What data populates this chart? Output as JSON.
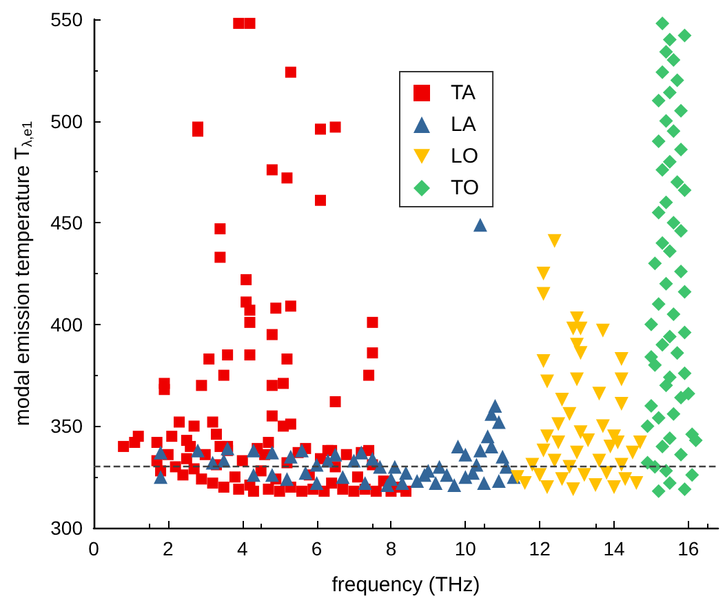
{
  "chart_data": {
    "type": "scatter",
    "xlabel": "frequency (THz)",
    "ylabel": "modal emission temperature T$_{λ,e1}$",
    "xlim": [
      0,
      16.8
    ],
    "xticks": [
      0,
      2,
      4,
      6,
      8,
      10,
      12,
      14,
      16
    ],
    "ylim": [
      300,
      550
    ],
    "yticks": [
      300,
      350,
      400,
      450,
      500,
      550
    ],
    "grid": false,
    "legend": "top",
    "ref_lines": [
      {
        "axis": "y",
        "value": 330,
        "color": "#404040",
        "line_style": "dashed"
      }
    ],
    "series": [
      {
        "name": "TA",
        "color": "#ee0000",
        "marker": "square",
        "x": [
          3.9,
          4.2,
          5.3,
          2.8,
          2.8,
          6.1,
          6.5,
          4.8,
          5.2,
          6.1,
          3.4,
          3.4,
          4.1,
          4.1,
          4.2,
          4.9,
          5.3,
          4.2,
          7.5,
          4.8,
          3.6,
          4.2,
          7.5,
          3.1,
          3.5,
          5.2,
          2.9,
          4.8,
          5.1,
          7.4,
          1.9,
          1.9,
          6.5,
          2.3,
          2.7,
          3.2,
          4.8,
          5.1,
          5.3,
          1.2,
          0.8,
          1.1,
          2.1,
          2.5,
          1.7,
          3.3,
          3.6,
          4.7,
          6.4,
          7.4,
          1.7,
          1.8,
          2.0,
          2.2,
          2.4,
          2.5,
          2.7,
          2.9,
          3.0,
          3.2,
          3.3,
          3.5,
          3.6,
          3.8,
          3.9,
          4.0,
          4.2,
          4.3,
          4.5,
          4.6,
          4.7,
          4.9,
          5.0,
          5.2,
          5.3,
          5.5,
          5.6,
          5.8,
          5.9,
          6.1,
          6.2,
          6.4,
          6.5,
          6.7,
          6.8,
          7.0,
          7.1,
          7.3,
          7.5,
          7.6,
          7.8,
          8.0,
          8.2,
          8.4,
          2.6,
          3.4,
          4.4,
          5.7,
          6.3,
          7.2
        ],
        "values": [
          548,
          548,
          524,
          497,
          495,
          496,
          497,
          476,
          472,
          461,
          447,
          433,
          422,
          411,
          407,
          408,
          409,
          401,
          401,
          395,
          385,
          385,
          386,
          383,
          375,
          383,
          370,
          370,
          371,
          375,
          371,
          368,
          362,
          352,
          350,
          352,
          355,
          350,
          351,
          345,
          340,
          342,
          345,
          343,
          342,
          346,
          340,
          342,
          338,
          338,
          333,
          328,
          336,
          330,
          326,
          334,
          329,
          324,
          336,
          322,
          331,
          320,
          338,
          325,
          319,
          333,
          321,
          318,
          328,
          336,
          319,
          324,
          318,
          332,
          320,
          337,
          318,
          326,
          319,
          334,
          318,
          322,
          330,
          319,
          336,
          318,
          325,
          319,
          331,
          318,
          323,
          318,
          320,
          318,
          340,
          340,
          339,
          339,
          338,
          337
        ]
      },
      {
        "name": "LA",
        "color": "#336699",
        "marker": "triangle",
        "x": [
          1.8,
          1.8,
          2.8,
          3.2,
          3.6,
          3.5,
          4.3,
          4.3,
          4.8,
          4.8,
          5.3,
          5.6,
          5.7,
          6.0,
          6.3,
          6.5,
          6.7,
          7.0,
          7.2,
          7.3,
          7.5,
          7.7,
          8.0,
          8.1,
          8.4,
          8.7,
          9.0,
          9.2,
          9.5,
          9.7,
          9.8,
          10.0,
          10.3,
          10.4,
          10.5,
          10.6,
          10.7,
          10.8,
          10.9,
          10.7,
          11.0,
          11.1,
          11.3,
          10.2,
          10.4,
          8.3,
          8.9,
          6.0,
          5.2,
          7.9,
          9.3,
          10.9,
          10.0
        ],
        "values": [
          337,
          325,
          338,
          332,
          339,
          333,
          338,
          326,
          337,
          326,
          335,
          338,
          327,
          331,
          333,
          336,
          325,
          333,
          337,
          322,
          334,
          330,
          324,
          330,
          327,
          323,
          328,
          322,
          326,
          321,
          340,
          325,
          331,
          338,
          322,
          345,
          356,
          360,
          352,
          340,
          335,
          330,
          325,
          327,
          449,
          322,
          326,
          322,
          324,
          321,
          330,
          323,
          336
        ]
      },
      {
        "name": "LO",
        "color": "#ffc000",
        "marker": "triangle-down",
        "x": [
          11.4,
          11.6,
          11.8,
          12.0,
          12.1,
          12.2,
          12.4,
          12.5,
          12.6,
          12.8,
          12.9,
          13.0,
          13.2,
          13.3,
          13.5,
          13.6,
          13.8,
          13.9,
          14.0,
          14.2,
          14.3,
          14.5,
          14.6,
          14.7,
          12.2,
          13.1,
          14.0,
          12.4,
          12.1,
          12.1,
          13.0,
          12.9,
          13.1,
          13.7,
          13.0,
          13.1,
          12.1,
          14.2,
          12.2,
          12.6,
          13.0,
          14.2,
          13.6,
          14.2,
          12.8,
          12.5,
          13.7,
          14.1
        ],
        "values": [
          325,
          322,
          331,
          326,
          338,
          320,
          333,
          342,
          324,
          330,
          319,
          337,
          326,
          343,
          321,
          333,
          327,
          340,
          320,
          331,
          324,
          337,
          322,
          342,
          345,
          347,
          345,
          441,
          425,
          415,
          403,
          398,
          398,
          397,
          390,
          386,
          382,
          383,
          372,
          363,
          373,
          373,
          366,
          361,
          356,
          351,
          350,
          342
        ]
      },
      {
        "name": "TO",
        "color": "#3ec46d",
        "marker": "diamond",
        "x": [
          15.3,
          15.9,
          15.5,
          15.4,
          15.6,
          15.3,
          15.7,
          15.5,
          15.2,
          15.8,
          15.4,
          15.6,
          15.2,
          15.8,
          15.5,
          15.3,
          15.7,
          15.9,
          15.4,
          15.2,
          15.6,
          15.8,
          15.3,
          15.5,
          15.1,
          15.8,
          15.4,
          15.9,
          15.2,
          15.6,
          15.0,
          15.9,
          15.3,
          15.7,
          15.1,
          15.9,
          15.4,
          16.0,
          15.0,
          15.6,
          14.9,
          16.1,
          15.3,
          15.8,
          15.1,
          16.1,
          15.5,
          15.2,
          15.9,
          14.9,
          15.5,
          15.2,
          15.8,
          15.5,
          15.0,
          15.5,
          16.2,
          15.4
        ],
        "values": [
          548,
          542,
          540,
          534,
          530,
          524,
          520,
          514,
          510,
          505,
          500,
          495,
          490,
          486,
          480,
          476,
          470,
          466,
          460,
          455,
          450,
          446,
          440,
          436,
          430,
          426,
          420,
          416,
          410,
          405,
          400,
          396,
          390,
          386,
          380,
          376,
          370,
          366,
          360,
          356,
          350,
          346,
          340,
          336,
          330,
          326,
          322,
          318,
          319,
          332,
          344,
          354,
          364,
          374,
          384,
          394,
          343,
          328
        ]
      }
    ]
  }
}
